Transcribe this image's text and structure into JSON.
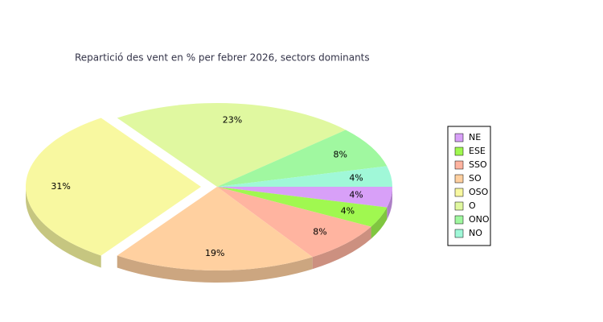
{
  "chart_data": {
    "type": "pie3d",
    "title": "Repartició des vent en % per febrer 2026, sectors dominants",
    "categories": [
      "NE",
      "ESE",
      "SSO",
      "SO",
      "OSO",
      "O",
      "ONO",
      "NO"
    ],
    "values": [
      4,
      4,
      8,
      19,
      31,
      23,
      8,
      4
    ],
    "value_labels": [
      "4%",
      "4%",
      "8%",
      "19%",
      "31%",
      "23%",
      "8%",
      "4%"
    ],
    "colors": [
      "#d8a0f8",
      "#a0f850",
      "#ffb4a0",
      "#ffd0a0",
      "#f8f8a0",
      "#e0f8a0",
      "#a0f8a0",
      "#a0f8d8"
    ],
    "legend": "right"
  }
}
